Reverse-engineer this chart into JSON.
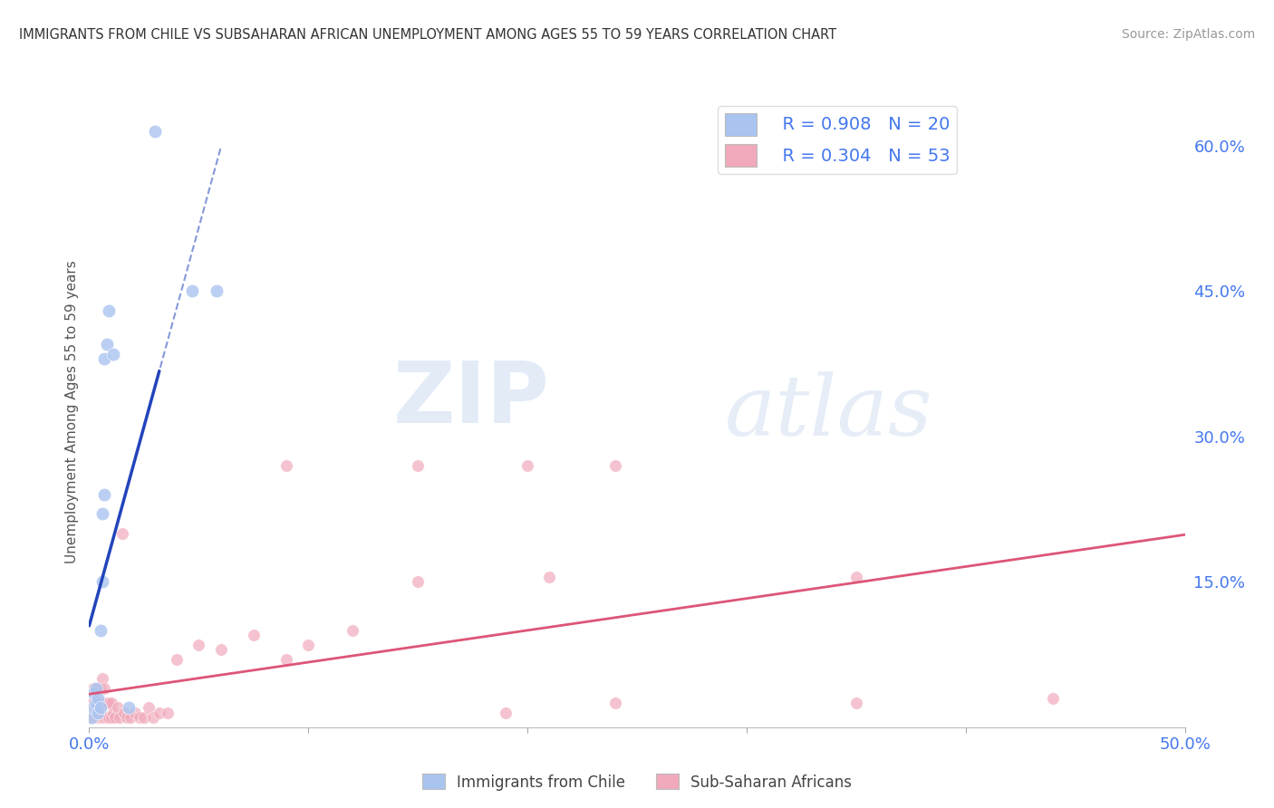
{
  "title": "IMMIGRANTS FROM CHILE VS SUBSAHARAN AFRICAN UNEMPLOYMENT AMONG AGES 55 TO 59 YEARS CORRELATION CHART",
  "source": "Source: ZipAtlas.com",
  "ylabel": "Unemployment Among Ages 55 to 59 years",
  "xlim": [
    0.0,
    0.5
  ],
  "ylim": [
    0.0,
    0.65
  ],
  "xticks": [
    0.0,
    0.1,
    0.2,
    0.3,
    0.4,
    0.5
  ],
  "xticklabels": [
    "0.0%",
    "",
    "",
    "",
    "",
    "50.0%"
  ],
  "yticks_right": [
    0.0,
    0.15,
    0.3,
    0.45,
    0.6
  ],
  "yticklabels_right": [
    "",
    "15.0%",
    "30.0%",
    "45.0%",
    "60.0%"
  ],
  "legend_r1": "R = 0.908",
  "legend_n1": "N = 20",
  "legend_r2": "R = 0.304",
  "legend_n2": "N = 53",
  "color_blue": "#aac4f0",
  "color_pink": "#f0aabb",
  "color_line_blue": "#2244bb",
  "color_line_pink": "#dd5577",
  "color_title": "#333333",
  "color_axis_blue": "#4477ee",
  "watermark_zip": "ZIP",
  "watermark_atlas": "atlas",
  "grid_color": "#cccccc",
  "bg_color": "#ffffff",
  "chile_x": [
    0.001,
    0.002,
    0.002,
    0.003,
    0.003,
    0.004,
    0.004,
    0.005,
    0.005,
    0.006,
    0.006,
    0.007,
    0.007,
    0.008,
    0.009,
    0.011,
    0.018,
    0.03,
    0.047,
    0.058
  ],
  "chile_y": [
    0.01,
    0.02,
    0.035,
    0.025,
    0.04,
    0.015,
    0.03,
    0.02,
    0.1,
    0.15,
    0.22,
    0.24,
    0.38,
    0.395,
    0.43,
    0.385,
    0.02,
    0.615,
    0.45,
    0.45
  ],
  "ssa_x": [
    0.001,
    0.001,
    0.002,
    0.002,
    0.002,
    0.003,
    0.003,
    0.003,
    0.004,
    0.004,
    0.004,
    0.005,
    0.005,
    0.005,
    0.006,
    0.006,
    0.006,
    0.007,
    0.007,
    0.007,
    0.008,
    0.008,
    0.009,
    0.009,
    0.01,
    0.01,
    0.011,
    0.012,
    0.013,
    0.014,
    0.015,
    0.016,
    0.017,
    0.019,
    0.021,
    0.023,
    0.025,
    0.027,
    0.029,
    0.032,
    0.036,
    0.04,
    0.05,
    0.06,
    0.075,
    0.09,
    0.1,
    0.12,
    0.15,
    0.19,
    0.24,
    0.35,
    0.44
  ],
  "ssa_y": [
    0.01,
    0.025,
    0.01,
    0.025,
    0.04,
    0.01,
    0.02,
    0.035,
    0.01,
    0.025,
    0.04,
    0.01,
    0.025,
    0.04,
    0.01,
    0.025,
    0.05,
    0.01,
    0.025,
    0.04,
    0.01,
    0.025,
    0.01,
    0.025,
    0.01,
    0.025,
    0.015,
    0.01,
    0.02,
    0.01,
    0.2,
    0.015,
    0.01,
    0.01,
    0.015,
    0.01,
    0.01,
    0.02,
    0.01,
    0.015,
    0.015,
    0.07,
    0.085,
    0.08,
    0.095,
    0.07,
    0.085,
    0.1,
    0.15,
    0.015,
    0.025,
    0.025,
    0.03
  ],
  "ssa_outliers_x": [
    0.09,
    0.15,
    0.2,
    0.21,
    0.24,
    0.35
  ],
  "ssa_outliers_y": [
    0.27,
    0.27,
    0.27,
    0.155,
    0.27,
    0.155
  ]
}
